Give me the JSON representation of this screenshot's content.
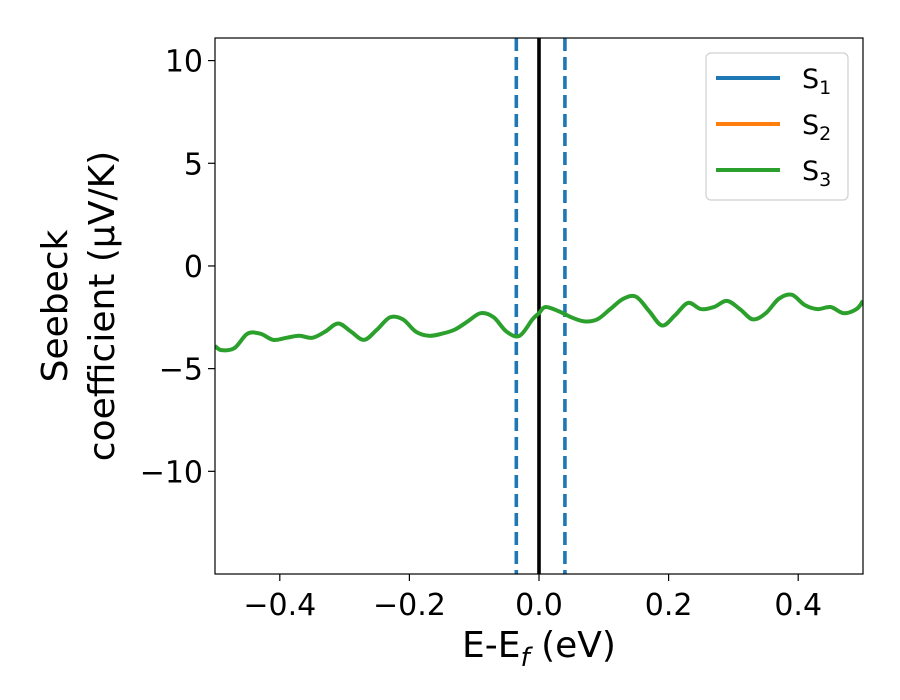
{
  "chart_data": {
    "type": "line",
    "xlabel": {
      "main": "E-E",
      "sub": "f",
      "tail": " (eV)"
    },
    "ylabel": {
      "line1": "Seebeck",
      "line2": "coefficient  (μV/K)"
    },
    "xlim": [
      -0.5,
      0.5
    ],
    "ylim": [
      -15,
      11.1
    ],
    "xticks": [
      -0.4,
      -0.2,
      0.0,
      0.2,
      0.4
    ],
    "xtick_labels": [
      "−0.4",
      "−0.2",
      "0.0",
      "0.2",
      "0.4"
    ],
    "yticks": [
      10,
      5,
      0,
      -5,
      -10
    ],
    "ytick_labels": [
      "10",
      "5",
      "0",
      "−5",
      "−10"
    ],
    "legend_position": "top-right",
    "grid": false,
    "series": [
      {
        "name_main": "S",
        "name_sub": "1",
        "color": "#1f77b4",
        "values": []
      },
      {
        "name_main": "S",
        "name_sub": "2",
        "color": "#ff7f0e",
        "values": []
      },
      {
        "name_main": "S",
        "name_sub": "3",
        "color": "#2ca02c",
        "x": [
          -0.5,
          -0.49,
          -0.47,
          -0.45,
          -0.43,
          -0.41,
          -0.39,
          -0.37,
          -0.35,
          -0.33,
          -0.31,
          -0.29,
          -0.27,
          -0.25,
          -0.23,
          -0.21,
          -0.19,
          -0.17,
          -0.15,
          -0.13,
          -0.11,
          -0.09,
          -0.07,
          -0.05,
          -0.03,
          -0.01,
          0.0,
          0.01,
          0.03,
          0.05,
          0.07,
          0.09,
          0.11,
          0.13,
          0.15,
          0.17,
          0.19,
          0.21,
          0.23,
          0.25,
          0.27,
          0.29,
          0.31,
          0.33,
          0.35,
          0.37,
          0.39,
          0.41,
          0.43,
          0.45,
          0.47,
          0.49,
          0.5
        ],
        "y": [
          -3.9,
          -4.1,
          -4.0,
          -3.3,
          -3.3,
          -3.6,
          -3.5,
          -3.4,
          -3.5,
          -3.2,
          -2.8,
          -3.2,
          -3.6,
          -3.1,
          -2.5,
          -2.6,
          -3.2,
          -3.4,
          -3.3,
          -3.1,
          -2.7,
          -2.3,
          -2.5,
          -3.2,
          -3.4,
          -2.6,
          -2.3,
          -2.0,
          -2.2,
          -2.5,
          -2.7,
          -2.6,
          -2.1,
          -1.6,
          -1.5,
          -2.2,
          -2.9,
          -2.4,
          -1.8,
          -2.1,
          -2.0,
          -1.7,
          -2.1,
          -2.6,
          -2.3,
          -1.6,
          -1.4,
          -1.9,
          -2.1,
          -2.0,
          -2.3,
          -2.1,
          -1.7
        ]
      }
    ],
    "vlines": [
      {
        "x": -0.035,
        "color": "#1f77b4",
        "style": "dashed"
      },
      {
        "x": 0.0,
        "color": "#000000",
        "style": "solid"
      },
      {
        "x": 0.04,
        "color": "#1f77b4",
        "style": "dashed"
      }
    ]
  }
}
